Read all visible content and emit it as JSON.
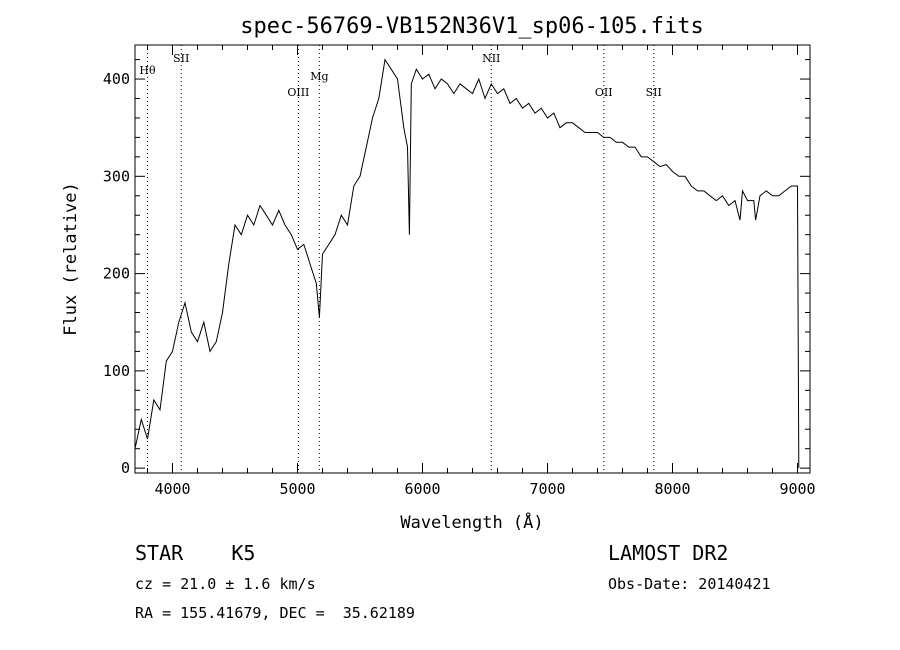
{
  "chart_data": {
    "type": "line",
    "title": "spec-56769-VB152N36V1_sp06-105.fits",
    "xlabel": "Wavelength (Å)",
    "ylabel": "Flux (relative)",
    "xlim": [
      3700,
      9100
    ],
    "ylim": [
      -5,
      435
    ],
    "xticks": [
      4000,
      5000,
      6000,
      7000,
      8000,
      9000
    ],
    "yticks": [
      0,
      100,
      200,
      300,
      400
    ],
    "grid": false,
    "series": [
      {
        "x": [
          3700,
          3750,
          3800,
          3850,
          3900,
          3950,
          4000,
          4050,
          4100,
          4150,
          4200,
          4250,
          4300,
          4350,
          4400,
          4450,
          4500,
          4550,
          4600,
          4650,
          4700,
          4750,
          4800,
          4850,
          4900,
          4950,
          5000,
          5050,
          5100,
          5150,
          5175,
          5200,
          5250,
          5300,
          5350,
          5400,
          5450,
          5500,
          5550,
          5600,
          5650,
          5700,
          5750,
          5800,
          5850,
          5880,
          5895,
          5910,
          5950,
          6000,
          6050,
          6100,
          6150,
          6200,
          6250,
          6300,
          6350,
          6400,
          6450,
          6500,
          6550,
          6600,
          6650,
          6700,
          6750,
          6800,
          6850,
          6900,
          6950,
          7000,
          7050,
          7100,
          7150,
          7200,
          7250,
          7300,
          7350,
          7400,
          7450,
          7500,
          7550,
          7600,
          7650,
          7700,
          7750,
          7800,
          7850,
          7900,
          7950,
          8000,
          8050,
          8100,
          8150,
          8200,
          8250,
          8300,
          8350,
          8400,
          8450,
          8500,
          8540,
          8560,
          8600,
          8650,
          8665,
          8700,
          8750,
          8800,
          8850,
          8900,
          8950,
          9000,
          9010
        ],
        "y": [
          20,
          50,
          30,
          70,
          60,
          110,
          120,
          150,
          170,
          140,
          130,
          150,
          120,
          130,
          160,
          210,
          250,
          240,
          260,
          250,
          270,
          260,
          250,
          265,
          250,
          240,
          225,
          230,
          210,
          190,
          155,
          220,
          230,
          240,
          260,
          250,
          290,
          300,
          330,
          360,
          380,
          420,
          410,
          400,
          350,
          330,
          240,
          395,
          410,
          400,
          405,
          390,
          400,
          395,
          385,
          395,
          390,
          385,
          400,
          380,
          395,
          385,
          390,
          375,
          380,
          370,
          375,
          365,
          370,
          360,
          365,
          350,
          355,
          355,
          350,
          345,
          345,
          345,
          340,
          340,
          335,
          335,
          330,
          330,
          320,
          320,
          315,
          310,
          312,
          305,
          300,
          300,
          290,
          285,
          285,
          280,
          275,
          280,
          270,
          275,
          255,
          285,
          275,
          275,
          255,
          280,
          285,
          280,
          280,
          285,
          290,
          290,
          0
        ]
      }
    ],
    "lines": [
      {
        "label": "Hθ",
        "x": 3800
      },
      {
        "label": "SII",
        "x": 4070
      },
      {
        "label": "OIII",
        "x": 5007
      },
      {
        "label": "Mg",
        "x": 5175
      },
      {
        "label": "NII",
        "x": 6550
      },
      {
        "label": "OII",
        "x": 7450
      },
      {
        "label": "SII",
        "x": 7850
      }
    ]
  },
  "info": {
    "object": "STAR    K5",
    "cz": "cz = 21.0 ± 1.6 km/s",
    "coords": "RA = 155.41679, DEC =  35.62189",
    "survey": "LAMOST DR2",
    "obs_date": "Obs-Date: 20140421"
  }
}
